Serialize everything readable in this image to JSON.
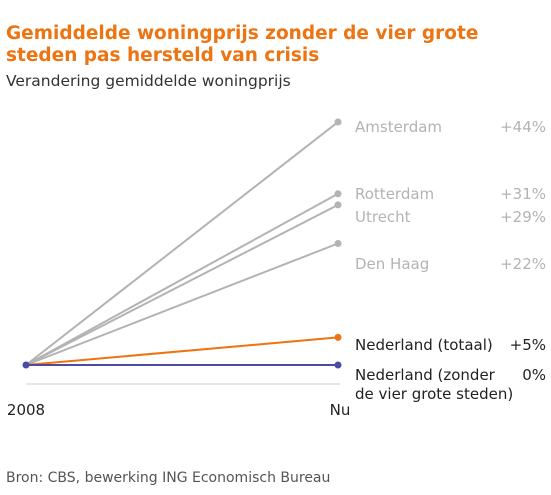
{
  "title": "Gemiddelde woningprijs zonder de vier grote steden pas hersteld van crisis",
  "subtitle": "Verandering gemiddelde woningprijs",
  "source": "Bron: CBS, bewerking ING Economisch Bureau",
  "chart_data": {
    "type": "line",
    "title": "Gemiddelde woningprijs zonder de vier grote steden pas hersteld van crisis",
    "subtitle": "Verandering gemiddelde woningprijs",
    "x": [
      "2008",
      "Nu"
    ],
    "ylim": [
      -10,
      50
    ],
    "grid": false,
    "legend": "direct labels at line ends",
    "series": [
      {
        "name": "Amsterdam",
        "values": [
          0,
          44
        ],
        "value_label": "+44%",
        "color": "#b3b3b3",
        "label_color": "#b3b3b3",
        "label_lines": [
          "Amsterdam"
        ]
      },
      {
        "name": "Rotterdam",
        "values": [
          0,
          31
        ],
        "value_label": "+31%",
        "color": "#b3b3b3",
        "label_color": "#b3b3b3",
        "label_lines": [
          "Rotterdam"
        ]
      },
      {
        "name": "Utrecht",
        "values": [
          0,
          29
        ],
        "value_label": "+29%",
        "color": "#b3b3b3",
        "label_color": "#b3b3b3",
        "label_lines": [
          "Utrecht"
        ]
      },
      {
        "name": "Den Haag",
        "values": [
          0,
          22
        ],
        "value_label": "+22%",
        "color": "#b3b3b3",
        "label_color": "#b3b3b3",
        "label_lines": [
          "Den Haag"
        ]
      },
      {
        "name": "Nederland (totaal)",
        "values": [
          0,
          5
        ],
        "value_label": "+5%",
        "color": "#ee7311",
        "label_color": "#222222",
        "label_lines": [
          "Nederland (totaal)"
        ]
      },
      {
        "name": "Nederland (zonder de vier grote steden)",
        "values": [
          0,
          0
        ],
        "value_label": "0%",
        "color": "#4b4aa4",
        "label_color": "#222222",
        "label_lines": [
          "Nederland (zonder",
          "de vier grote steden)"
        ]
      }
    ]
  }
}
